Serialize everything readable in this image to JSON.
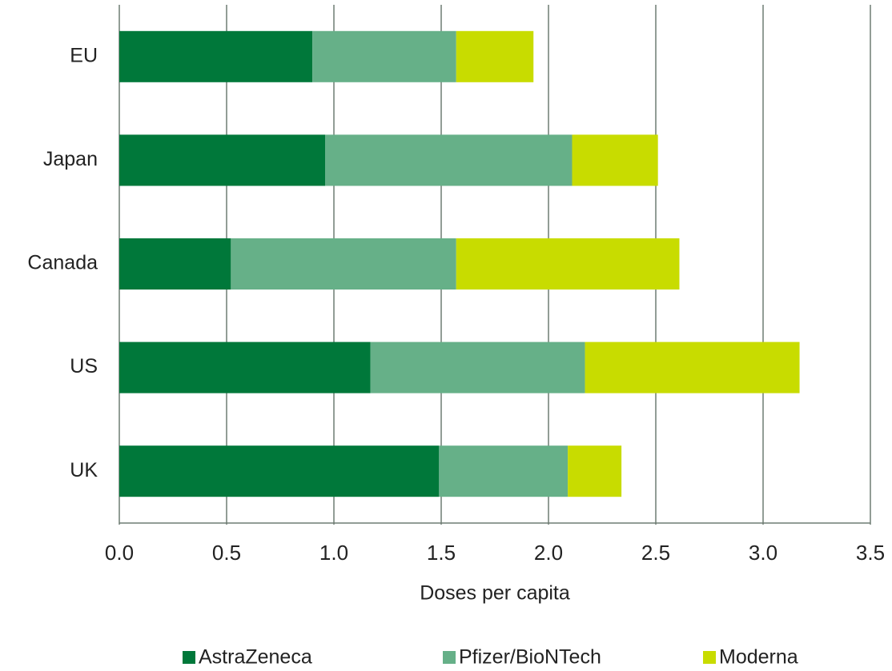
{
  "chart_data": {
    "type": "stacked-barh",
    "categories": [
      "EU",
      "Japan",
      "Canada",
      "US",
      "UK"
    ],
    "series": [
      {
        "name": "AstraZeneca",
        "color": "#00783a",
        "values": [
          0.9,
          0.96,
          0.52,
          1.17,
          1.49
        ]
      },
      {
        "name": "Pfizer/BioNTech",
        "color": "#66b088",
        "values": [
          0.67,
          1.15,
          1.05,
          1.0,
          0.6
        ]
      },
      {
        "name": "Moderna",
        "color": "#c8dc00",
        "values": [
          0.36,
          0.4,
          1.04,
          1.0,
          0.25
        ]
      }
    ],
    "xlabel": "Doses per capita",
    "xlim": [
      0,
      3.5
    ],
    "xticks": [
      {
        "value": 0,
        "label": "0.0"
      },
      0.5,
      {
        "value": 1,
        "label": "1.0"
      },
      1.5,
      {
        "value": 2,
        "label": "2.0"
      },
      2.5,
      {
        "value": 3,
        "label": "3.0"
      },
      3.5
    ],
    "grid": true,
    "legend": "bottom"
  }
}
